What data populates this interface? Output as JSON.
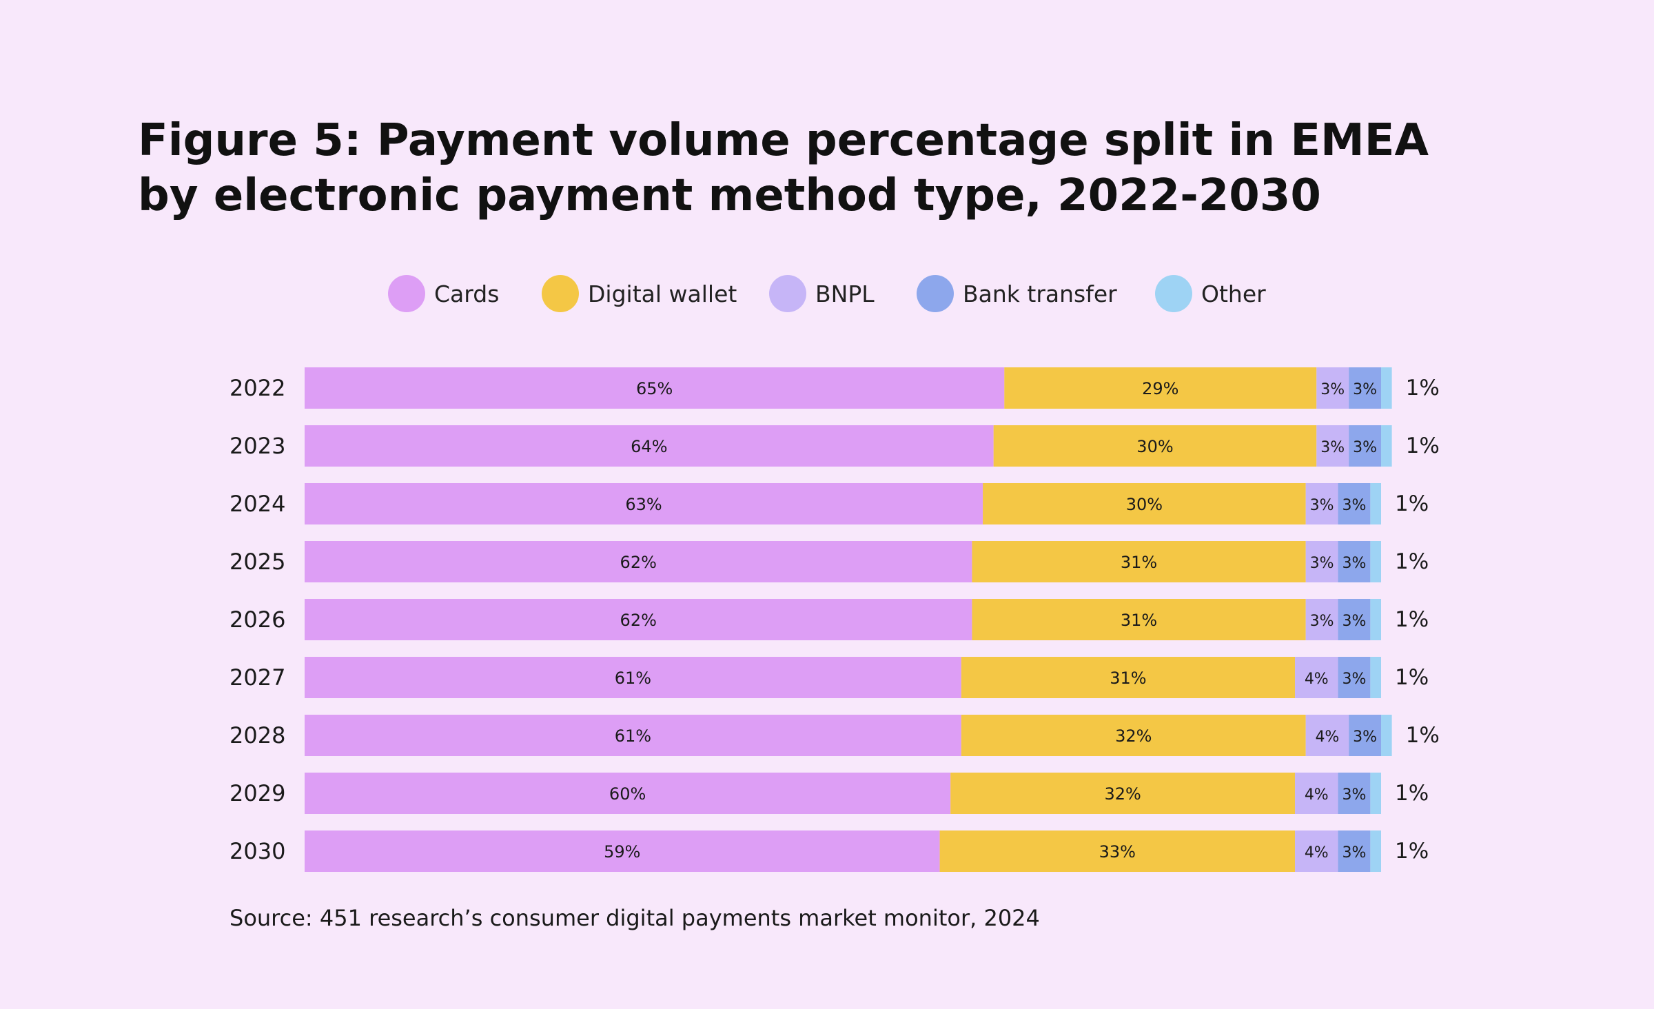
{
  "colors": {
    "background": "#f8e8fb",
    "Cards": "#dd9ef5",
    "Digital wallet": "#f4c745",
    "BNPL": "#c6b5f7",
    "Bank transfer": "#8da7ec",
    "Other": "#9ed3f4"
  },
  "chart_data": {
    "type": "bar",
    "orientation": "horizontal",
    "stacked": true,
    "title": "Figure 5: Payment volume percentage split in EMEA by electronic payment method type, 2022-2030",
    "title_lines": [
      "Figure 5: Payment volume percentage split in EMEA",
      "by electronic payment method type, 2022-2030"
    ],
    "xlabel": "",
    "ylabel": "",
    "xlim": [
      0,
      101
    ],
    "legend_position": "top-center",
    "categories": [
      "2022",
      "2023",
      "2024",
      "2025",
      "2026",
      "2027",
      "2028",
      "2029",
      "2030"
    ],
    "series": [
      {
        "name": "Cards",
        "values": [
          65,
          64,
          63,
          62,
          62,
          61,
          61,
          60,
          59
        ]
      },
      {
        "name": "Digital wallet",
        "values": [
          29,
          30,
          30,
          31,
          31,
          31,
          32,
          32,
          33
        ]
      },
      {
        "name": "BNPL",
        "values": [
          3,
          3,
          3,
          3,
          3,
          4,
          4,
          4,
          4
        ]
      },
      {
        "name": "Bank transfer",
        "values": [
          3,
          3,
          3,
          3,
          3,
          3,
          3,
          3,
          3
        ]
      },
      {
        "name": "Other",
        "values": [
          1,
          1,
          1,
          1,
          1,
          1,
          1,
          1,
          1
        ]
      }
    ],
    "value_suffix": "%",
    "source": "Source: 451 research’s consumer digital payments market monitor, 2024"
  }
}
